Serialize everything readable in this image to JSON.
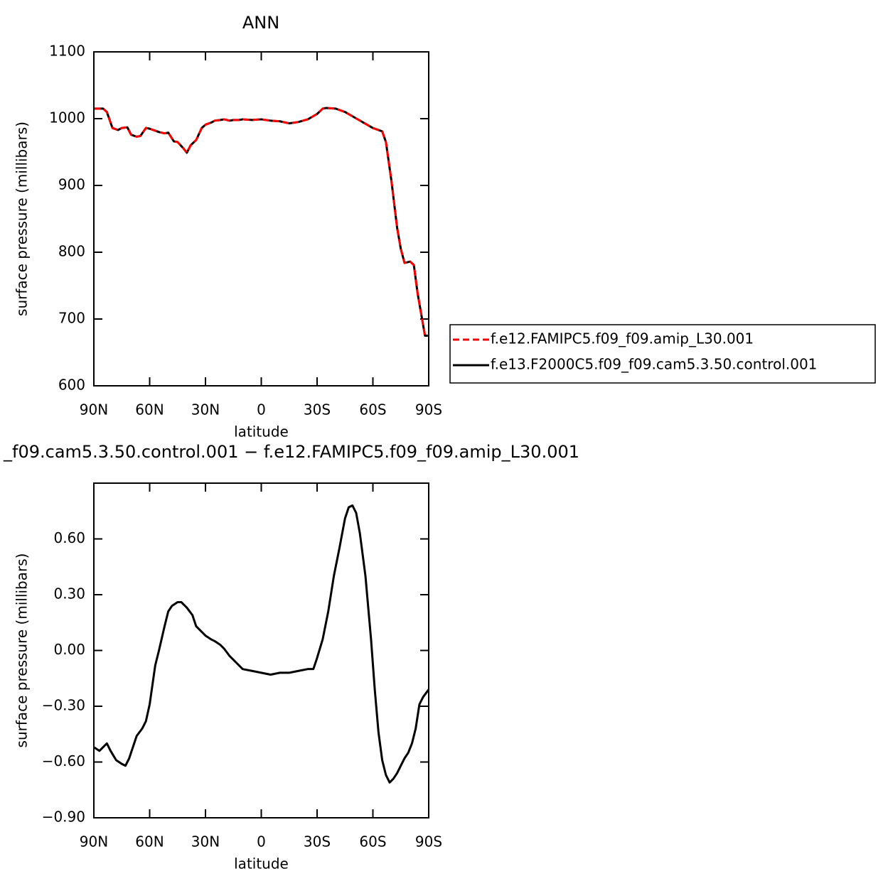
{
  "chart_data": [
    {
      "type": "line",
      "title": "ANN",
      "xlabel": "latitude",
      "ylabel": "surface pressure (millibars)",
      "xlim": [
        90,
        -90
      ],
      "xticks": [
        {
          "value": 90,
          "label": "90N"
        },
        {
          "value": 60,
          "label": "60N"
        },
        {
          "value": 30,
          "label": "30N"
        },
        0,
        {
          "value": -30,
          "label": "30S"
        },
        {
          "value": -60,
          "label": "60S"
        },
        {
          "value": -90,
          "label": "90S"
        }
      ],
      "ylim": [
        600,
        1100
      ],
      "yticks": [
        600,
        700,
        800,
        900,
        1000,
        1100
      ],
      "legend": "right",
      "x": [
        90,
        87,
        85,
        83,
        80,
        77,
        75,
        72,
        70,
        67,
        65,
        62,
        60,
        57,
        55,
        52,
        50,
        47,
        45,
        42,
        40,
        38,
        35,
        32,
        30,
        27,
        25,
        22,
        20,
        17,
        15,
        12,
        10,
        5,
        0,
        -5,
        -10,
        -15,
        -20,
        -25,
        -30,
        -33,
        -35,
        -40,
        -45,
        -50,
        -55,
        -60,
        -65,
        -67,
        -70,
        -73,
        -75,
        -77,
        -80,
        -82,
        -84,
        -86,
        -88,
        -90
      ],
      "series": [
        {
          "name": "f.e12.FAMIPC5.f09_f09.amip_L30.001",
          "color": "#ff0000",
          "line_style": "dashed",
          "values": [
            1015,
            1015,
            1015,
            1010,
            986,
            983,
            986,
            987,
            976,
            973,
            974,
            986,
            985,
            982,
            980,
            978,
            979,
            966,
            965,
            956,
            949,
            960,
            968,
            986,
            991,
            994,
            997,
            998,
            999,
            997,
            998,
            998,
            999,
            998,
            999,
            997,
            996,
            993,
            995,
            999,
            1007,
            1015,
            1016,
            1015,
            1010,
            1002,
            994,
            986,
            981,
            965,
            906,
            837,
            805,
            784,
            786,
            781,
            739,
            707,
            675,
            675
          ]
        },
        {
          "name": "f.e13.F2000C5.f09_f09.cam5.3.50.control.001",
          "color": "#000000",
          "line_style": "solid",
          "values": [
            1015,
            1015,
            1015,
            1010,
            986,
            983,
            986,
            987,
            976,
            973,
            974,
            986,
            985,
            982,
            980,
            978,
            979,
            966,
            965,
            956,
            949,
            960,
            968,
            986,
            991,
            994,
            997,
            998,
            999,
            997,
            998,
            998,
            999,
            998,
            999,
            997,
            996,
            993,
            995,
            999,
            1007,
            1015,
            1016,
            1015,
            1010,
            1002,
            994,
            986,
            981,
            965,
            906,
            837,
            805,
            784,
            786,
            781,
            739,
            707,
            675,
            675
          ]
        }
      ]
    },
    {
      "type": "line",
      "title": "_f09.cam5.3.50.control.001 − f.e12.FAMIPC5.f09_f09.amip_L30.001",
      "xlabel": "latitude",
      "ylabel": "surface pressure (millibars)",
      "xlim": [
        90,
        -90
      ],
      "xticks": [
        {
          "value": 90,
          "label": "90N"
        },
        {
          "value": 60,
          "label": "60N"
        },
        {
          "value": 30,
          "label": "30N"
        },
        0,
        {
          "value": -30,
          "label": "30S"
        },
        {
          "value": -60,
          "label": "60S"
        },
        {
          "value": -90,
          "label": "90S"
        }
      ],
      "ylim": [
        -0.9,
        0.9
      ],
      "yticks": [
        {
          "value": -0.9,
          "label": "−0.90"
        },
        {
          "value": -0.6,
          "label": "−0.60"
        },
        {
          "value": -0.3,
          "label": "−0.30"
        },
        {
          "value": 0,
          "label": "0.00"
        },
        {
          "value": 0.3,
          "label": "0.30"
        },
        {
          "value": 0.6,
          "label": "0.60"
        }
      ],
      "color": "#000000",
      "x": [
        90,
        87,
        85,
        83,
        81,
        78,
        75,
        73,
        71,
        69,
        67,
        64,
        62,
        60,
        57,
        55,
        52,
        50,
        48,
        45,
        43,
        40,
        37,
        35,
        32,
        30,
        27,
        25,
        22,
        20,
        17,
        15,
        12,
        10,
        5,
        0,
        -5,
        -10,
        -15,
        -20,
        -25,
        -28,
        -30,
        -33,
        -36,
        -39,
        -42,
        -45,
        -47,
        -49,
        -51,
        -53,
        -56,
        -59,
        -61,
        -63,
        -65,
        -67,
        -69,
        -71,
        -73,
        -75,
        -77,
        -79,
        -81,
        -83,
        -85,
        -87,
        -90
      ],
      "values": [
        -0.52,
        -0.54,
        -0.52,
        -0.5,
        -0.54,
        -0.59,
        -0.61,
        -0.62,
        -0.58,
        -0.52,
        -0.46,
        -0.42,
        -0.38,
        -0.29,
        -0.08,
        0,
        0.13,
        0.21,
        0.24,
        0.26,
        0.26,
        0.23,
        0.19,
        0.13,
        0.1,
        0.08,
        0.06,
        0.05,
        0.03,
        0.01,
        -0.03,
        -0.05,
        -0.08,
        -0.1,
        -0.11,
        -0.12,
        -0.13,
        -0.12,
        -0.12,
        -0.11,
        -0.1,
        -0.1,
        -0.04,
        0.06,
        0.21,
        0.4,
        0.55,
        0.71,
        0.77,
        0.78,
        0.74,
        0.63,
        0.4,
        0.06,
        -0.21,
        -0.44,
        -0.59,
        -0.67,
        -0.71,
        -0.69,
        -0.66,
        -0.62,
        -0.58,
        -0.55,
        -0.5,
        -0.42,
        -0.29,
        -0.25,
        -0.21
      ]
    }
  ]
}
